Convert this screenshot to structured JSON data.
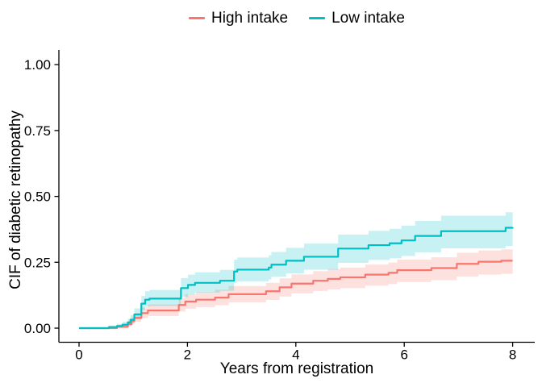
{
  "chart_data": {
    "type": "line",
    "variant": "step-function-with-confidence-bands",
    "title": "",
    "xlabel": "Years from registration",
    "ylabel": "CIF of diabetic retinopathy",
    "xlim": [
      0,
      8
    ],
    "ylim": [
      0,
      1
    ],
    "grid": false,
    "background": "#FFFFFF",
    "axis_color": "#000000",
    "legend_position": "top-center",
    "x_ticks": [
      {
        "v": 0,
        "label": "0"
      },
      {
        "v": 2,
        "label": "2"
      },
      {
        "v": 4,
        "label": "4"
      },
      {
        "v": 6,
        "label": "6"
      },
      {
        "v": 8,
        "label": "8"
      }
    ],
    "y_ticks": [
      {
        "v": 0.0,
        "label": "0.00"
      },
      {
        "v": 0.25,
        "label": "0.25"
      },
      {
        "v": 0.5,
        "label": "0.50"
      },
      {
        "v": 0.75,
        "label": "0.75"
      },
      {
        "v": 1.0,
        "label": "1.00"
      }
    ],
    "series": [
      {
        "name": "High intake",
        "color": "#F8766D",
        "band_opacity": 0.22,
        "points_format": [
          "years",
          "cif",
          "ci_lower",
          "ci_upper"
        ],
        "points": [
          [
            0,
            0,
            0,
            0
          ],
          [
            0.7,
            0.005,
            0.001,
            0.012
          ],
          [
            0.9,
            0.015,
            0.007,
            0.027
          ],
          [
            0.97,
            0.027,
            0.015,
            0.042
          ],
          [
            1.02,
            0.039,
            0.024,
            0.057
          ],
          [
            1.15,
            0.057,
            0.038,
            0.078
          ],
          [
            1.27,
            0.067,
            0.046,
            0.09
          ],
          [
            1.84,
            0.088,
            0.063,
            0.114
          ],
          [
            1.96,
            0.101,
            0.074,
            0.129
          ],
          [
            2.16,
            0.108,
            0.08,
            0.137
          ],
          [
            2.51,
            0.116,
            0.087,
            0.146
          ],
          [
            2.76,
            0.129,
            0.098,
            0.16
          ],
          [
            3.45,
            0.14,
            0.107,
            0.172
          ],
          [
            3.7,
            0.155,
            0.12,
            0.189
          ],
          [
            3.92,
            0.169,
            0.132,
            0.204
          ],
          [
            4.32,
            0.18,
            0.141,
            0.216
          ],
          [
            4.59,
            0.187,
            0.147,
            0.224
          ],
          [
            4.82,
            0.193,
            0.152,
            0.23
          ],
          [
            5.28,
            0.203,
            0.161,
            0.241
          ],
          [
            5.71,
            0.21,
            0.167,
            0.249
          ],
          [
            5.87,
            0.22,
            0.175,
            0.26
          ],
          [
            6.5,
            0.228,
            0.182,
            0.269
          ],
          [
            6.97,
            0.244,
            0.196,
            0.286
          ],
          [
            7.37,
            0.252,
            0.203,
            0.295
          ],
          [
            7.79,
            0.256,
            0.206,
            0.299
          ],
          [
            8,
            0.256,
            0.206,
            0.299
          ]
        ]
      },
      {
        "name": "Low intake",
        "color": "#00BFC4",
        "band_opacity": 0.22,
        "points_format": [
          "years",
          "cif",
          "ci_lower",
          "ci_upper"
        ],
        "points": [
          [
            0,
            0,
            0,
            0
          ],
          [
            0.55,
            0.004,
            0.001,
            0.01
          ],
          [
            0.7,
            0.008,
            0.003,
            0.016
          ],
          [
            0.8,
            0.013,
            0.006,
            0.024
          ],
          [
            0.9,
            0.022,
            0.012,
            0.036
          ],
          [
            0.95,
            0.032,
            0.019,
            0.05
          ],
          [
            1.02,
            0.052,
            0.034,
            0.075
          ],
          [
            1.15,
            0.093,
            0.068,
            0.122
          ],
          [
            1.22,
            0.108,
            0.081,
            0.14
          ],
          [
            1.3,
            0.112,
            0.084,
            0.145
          ],
          [
            1.88,
            0.152,
            0.118,
            0.19
          ],
          [
            2.01,
            0.164,
            0.128,
            0.203
          ],
          [
            2.14,
            0.172,
            0.135,
            0.212
          ],
          [
            2.6,
            0.18,
            0.142,
            0.221
          ],
          [
            2.86,
            0.215,
            0.172,
            0.26
          ],
          [
            2.92,
            0.222,
            0.178,
            0.268
          ],
          [
            3.5,
            0.23,
            0.185,
            0.277
          ],
          [
            3.55,
            0.241,
            0.195,
            0.289
          ],
          [
            3.82,
            0.256,
            0.208,
            0.305
          ],
          [
            4.15,
            0.271,
            0.222,
            0.321
          ],
          [
            4.78,
            0.302,
            0.248,
            0.355
          ],
          [
            5.34,
            0.315,
            0.259,
            0.369
          ],
          [
            5.73,
            0.322,
            0.265,
            0.377
          ],
          [
            5.95,
            0.333,
            0.274,
            0.389
          ],
          [
            6.2,
            0.35,
            0.288,
            0.407
          ],
          [
            6.68,
            0.368,
            0.303,
            0.427
          ],
          [
            7.87,
            0.381,
            0.312,
            0.44
          ],
          [
            8,
            0.383,
            0.313,
            0.442
          ]
        ]
      }
    ]
  }
}
